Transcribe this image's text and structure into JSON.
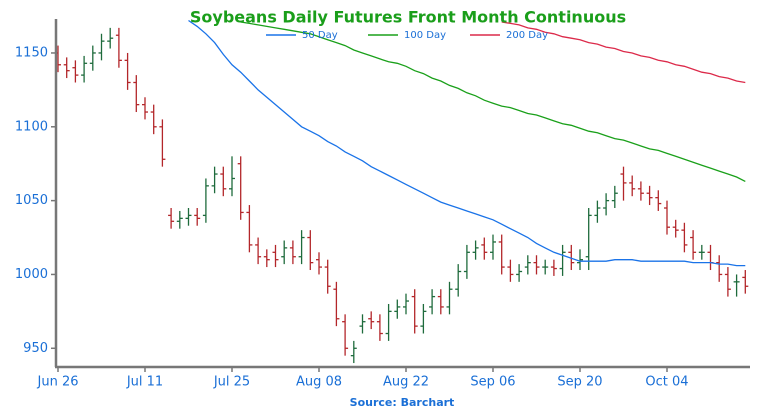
{
  "chart_data": {
    "type": "ohlc",
    "title": "Soybeans Daily Futures Front Month Continuous",
    "source": "Source: Barchart",
    "categories": [
      "Jun 26",
      null,
      null,
      null,
      null,
      null,
      null,
      null,
      null,
      null,
      "Jul 11",
      null,
      null,
      null,
      null,
      null,
      null,
      null,
      null,
      null,
      "Jul 25",
      null,
      null,
      null,
      null,
      null,
      null,
      null,
      null,
      null,
      "Aug 08",
      null,
      null,
      null,
      null,
      null,
      null,
      null,
      null,
      null,
      "Aug 22",
      null,
      null,
      null,
      null,
      null,
      null,
      null,
      null,
      null,
      "Sep 06",
      null,
      null,
      null,
      null,
      null,
      null,
      null,
      null,
      null,
      "Sep 20",
      null,
      null,
      null,
      null,
      null,
      null,
      null,
      null,
      null,
      "Oct 04",
      null,
      null,
      null,
      null,
      null,
      null,
      null,
      null,
      null
    ],
    "open": [
      1150,
      1142,
      1140,
      1135,
      1143,
      1150,
      1158,
      1162,
      1145,
      1130,
      1115,
      1110,
      1100,
      1040,
      1036,
      1038,
      1040,
      1040,
      1060,
      1068,
      1058,
      1075,
      1042,
      1020,
      1012,
      1015,
      1012,
      1018,
      1012,
      1025,
      1010,
      1005,
      990,
      968,
      945,
      965,
      970,
      968,
      960,
      975,
      978,
      985,
      965,
      978,
      985,
      978,
      990,
      1002,
      1015,
      1020,
      1015,
      1022,
      1005,
      1000,
      1005,
      1008,
      1005,
      1005,
      1004,
      1015,
      1008,
      1012,
      1040,
      1045,
      1050,
      1068,
      1062,
      1058,
      1055,
      1052,
      1045,
      1032,
      1030,
      1025,
      1015,
      1015,
      1008,
      1000,
      995,
      998
    ],
    "high": [
      1155,
      1147,
      1145,
      1148,
      1155,
      1163,
      1167,
      1167,
      1150,
      1135,
      1120,
      1115,
      1105,
      1045,
      1043,
      1045,
      1045,
      1065,
      1073,
      1073,
      1080,
      1080,
      1047,
      1025,
      1017,
      1020,
      1023,
      1023,
      1030,
      1030,
      1015,
      1010,
      995,
      973,
      955,
      973,
      975,
      973,
      980,
      983,
      987,
      990,
      980,
      990,
      990,
      995,
      1007,
      1020,
      1023,
      1025,
      1027,
      1027,
      1010,
      1007,
      1013,
      1013,
      1010,
      1010,
      1020,
      1020,
      1017,
      1045,
      1050,
      1055,
      1060,
      1073,
      1067,
      1063,
      1060,
      1057,
      1050,
      1037,
      1035,
      1030,
      1020,
      1020,
      1013,
      1005,
      1000,
      1003
    ],
    "low": [
      1137,
      1133,
      1130,
      1130,
      1138,
      1145,
      1153,
      1140,
      1125,
      1110,
      1105,
      1095,
      1073,
      1031,
      1031,
      1033,
      1033,
      1035,
      1055,
      1053,
      1053,
      1037,
      1015,
      1007,
      1005,
      1005,
      1007,
      1007,
      1007,
      1003,
      1000,
      987,
      965,
      945,
      940,
      960,
      963,
      955,
      955,
      970,
      973,
      960,
      960,
      973,
      973,
      973,
      985,
      997,
      1010,
      1010,
      1010,
      1000,
      995,
      995,
      1000,
      1000,
      1000,
      999,
      999,
      1003,
      1003,
      1003,
      1035,
      1040,
      1045,
      1050,
      1053,
      1050,
      1047,
      1043,
      1027,
      1025,
      1015,
      1010,
      1010,
      1003,
      995,
      985,
      985,
      987
    ],
    "close": [
      1142,
      1138,
      1135,
      1143,
      1150,
      1158,
      1160,
      1145,
      1130,
      1115,
      1110,
      1100,
      1078,
      1036,
      1038,
      1040,
      1038,
      1060,
      1068,
      1058,
      1065,
      1042,
      1020,
      1012,
      1010,
      1010,
      1018,
      1012,
      1025,
      1008,
      1005,
      992,
      970,
      950,
      950,
      968,
      968,
      960,
      975,
      978,
      982,
      965,
      975,
      985,
      978,
      990,
      1002,
      1015,
      1018,
      1015,
      1022,
      1005,
      1000,
      1002,
      1008,
      1005,
      1005,
      1004,
      1015,
      1008,
      1010,
      1040,
      1045,
      1050,
      1055,
      1062,
      1058,
      1055,
      1052,
      1048,
      1032,
      1030,
      1020,
      1015,
      1015,
      1008,
      1000,
      990,
      995,
      992
    ],
    "up_color": "#1e6b3c",
    "down_color": "#b3262a",
    "series": [
      {
        "name": "50 Day",
        "color": "#1a73e8",
        "values": [
          null,
          null,
          null,
          null,
          null,
          null,
          null,
          null,
          null,
          null,
          null,
          null,
          null,
          null,
          null,
          1172,
          1168,
          1163,
          1157,
          1149,
          1142,
          1137,
          1131,
          1125,
          1120,
          1115,
          1110,
          1105,
          1100,
          1097,
          1094,
          1090,
          1087,
          1083,
          1080,
          1077,
          1073,
          1070,
          1067,
          1064,
          1061,
          1058,
          1055,
          1052,
          1049,
          1047,
          1045,
          1043,
          1041,
          1039,
          1037,
          1034,
          1031,
          1028,
          1025,
          1021,
          1018,
          1015,
          1013,
          1011,
          1009,
          1009,
          1009,
          1009,
          1010,
          1010,
          1010,
          1009,
          1009,
          1009,
          1009,
          1009,
          1009,
          1008,
          1008,
          1008,
          1007,
          1007,
          1006,
          1006
        ]
      },
      {
        "name": "100 Day",
        "color": "#1aa01a",
        "values": [
          null,
          null,
          null,
          null,
          null,
          null,
          null,
          null,
          null,
          null,
          null,
          null,
          null,
          null,
          null,
          null,
          null,
          null,
          null,
          null,
          null,
          1171,
          1170,
          1169,
          1168,
          1167,
          1166,
          1165,
          1164,
          1163,
          1161,
          1159,
          1157,
          1155,
          1152,
          1150,
          1148,
          1146,
          1144,
          1143,
          1141,
          1138,
          1136,
          1133,
          1131,
          1128,
          1126,
          1123,
          1121,
          1118,
          1116,
          1114,
          1113,
          1111,
          1109,
          1108,
          1106,
          1104,
          1102,
          1101,
          1099,
          1097,
          1096,
          1094,
          1092,
          1091,
          1089,
          1087,
          1085,
          1084,
          1082,
          1080,
          1078,
          1076,
          1074,
          1072,
          1070,
          1068,
          1066,
          1063
        ]
      },
      {
        "name": "200 Day",
        "color": "#dc2a4a",
        "values": [
          null,
          null,
          null,
          null,
          null,
          null,
          null,
          null,
          null,
          null,
          null,
          null,
          null,
          null,
          null,
          null,
          null,
          null,
          null,
          null,
          null,
          null,
          null,
          null,
          null,
          null,
          null,
          null,
          null,
          null,
          null,
          null,
          null,
          null,
          null,
          null,
          null,
          null,
          null,
          null,
          null,
          null,
          null,
          null,
          null,
          null,
          null,
          null,
          null,
          null,
          null,
          1171,
          1170,
          1169,
          1167,
          1166,
          1164,
          1163,
          1161,
          1160,
          1159,
          1157,
          1156,
          1154,
          1153,
          1151,
          1150,
          1148,
          1147,
          1145,
          1144,
          1142,
          1141,
          1139,
          1137,
          1136,
          1134,
          1133,
          1131,
          1130
        ]
      }
    ],
    "ylim": [
      938,
      1173
    ],
    "yticks": [
      950,
      1000,
      1050,
      1100,
      1150
    ]
  }
}
